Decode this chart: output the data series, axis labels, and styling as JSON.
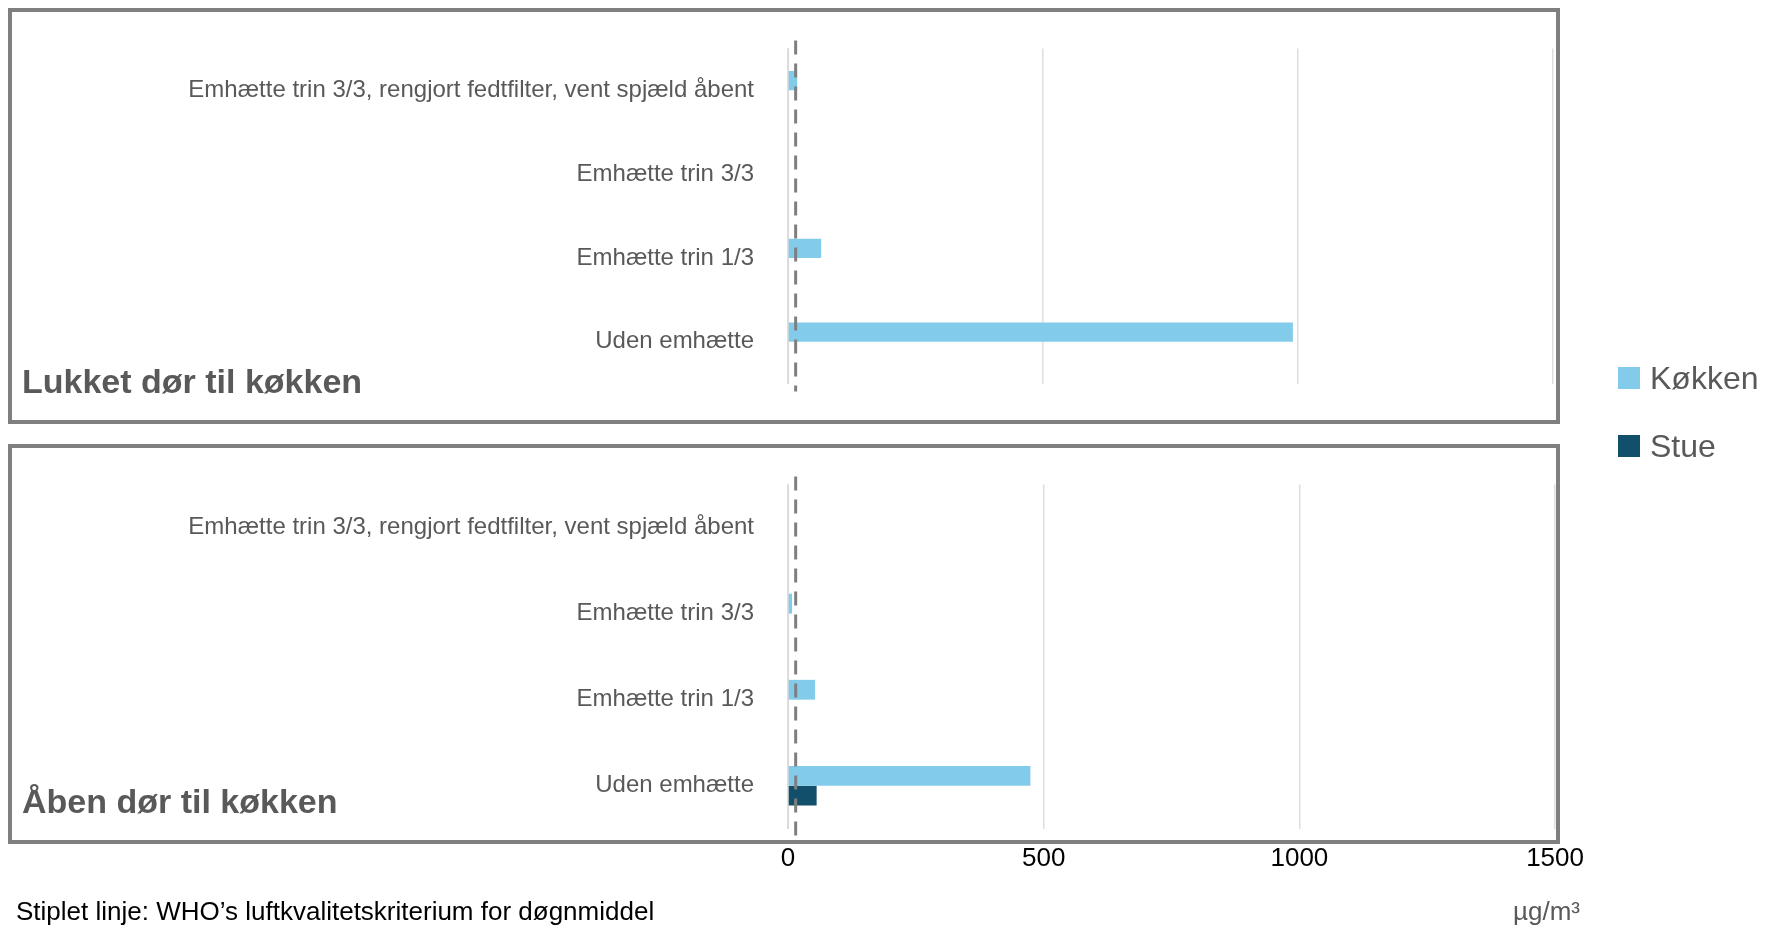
{
  "chart_data": [
    {
      "type": "bar",
      "orientation": "horizontal",
      "title": "Lukket dør til køkken",
      "categories": [
        "Emhætte trin 3/3, rengjort fedtfilter, vent spjæld åbent",
        "Emhætte trin 3/3",
        "Emhætte trin 1/3",
        "Uden emhætte"
      ],
      "series": [
        {
          "name": "Køkken",
          "color": "#83cbeb",
          "values": [
            18,
            null,
            65,
            990
          ]
        },
        {
          "name": "Stue",
          "color": "#124f6b",
          "values": [
            null,
            null,
            null,
            null
          ]
        }
      ],
      "xlim": [
        0,
        1500
      ],
      "xticks": [
        0,
        500,
        1000,
        1500
      ],
      "tick_labels": "y",
      "grid": "x",
      "legend": "right",
      "ref_lines": [
        {
          "axis": "x",
          "value": 15,
          "color": "#7f7f7f",
          "line_style": "dashed"
        }
      ]
    },
    {
      "type": "bar",
      "orientation": "horizontal",
      "title": "Åben dør til køkken",
      "categories": [
        "Emhætte trin 3/3, rengjort fedtfilter, vent spjæld åbent",
        "Emhætte trin 3/3",
        "Emhætte trin 1/3",
        "Uden emhætte"
      ],
      "series": [
        {
          "color": "#83cbeb",
          "values": [
            null,
            8,
            53,
            474
          ]
        },
        {
          "color": "#124f6b",
          "values": [
            null,
            null,
            null,
            56
          ]
        }
      ],
      "xlim": [
        0,
        1500
      ],
      "xticks": [
        0,
        500,
        1000,
        1500
      ],
      "grid": "x",
      "xlabel": "µg/m³",
      "ref_lines": [
        {
          "axis": "x",
          "value": 15,
          "color": "#7f7f7f",
          "line_style": "dashed"
        }
      ],
      "annotations": [
        "Stiplet linje: WHO’s luftkvalitetskriterium for døgnmiddel"
      ]
    }
  ]
}
